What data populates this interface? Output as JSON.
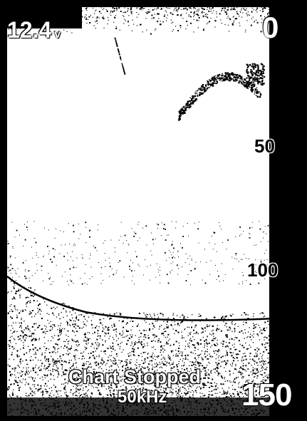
{
  "header": {
    "voltage_value": "12.4",
    "voltage_unit": "v"
  },
  "depth_scale": {
    "top_label": "0",
    "mid1_label": "50",
    "mid2_label": "100",
    "bottom_label": "150",
    "range_min": 0,
    "range_max": 150
  },
  "status": {
    "chart_state": "Chart Stopped",
    "frequency": "50kHz"
  },
  "colors": {
    "background": "#000000",
    "paper": "#ffffff",
    "echo": "#000000"
  }
}
